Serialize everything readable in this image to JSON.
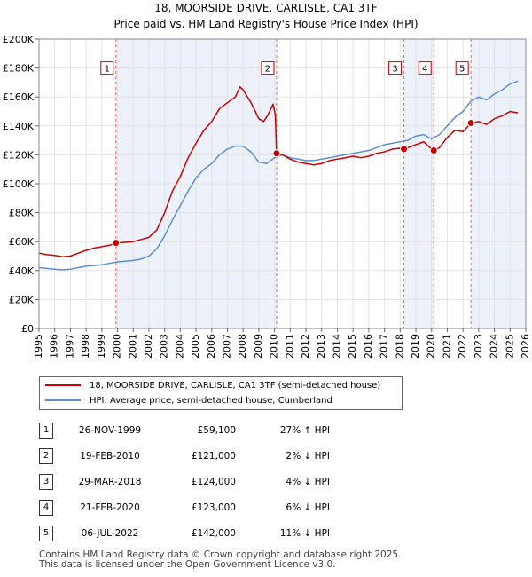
{
  "chart_data": {
    "type": "line",
    "title": "18, MOORSIDE DRIVE, CARLISLE, CA1 3TF",
    "subtitle": "Price paid vs. HM Land Registry's House Price Index (HPI)",
    "xlim": [
      1995,
      2026
    ],
    "ylim": [
      0,
      200000
    ],
    "x_ticks": [
      "1995",
      "1996",
      "1997",
      "1998",
      "1999",
      "2000",
      "2001",
      "2002",
      "2003",
      "2004",
      "2005",
      "2006",
      "2007",
      "2008",
      "2009",
      "2010",
      "2011",
      "2012",
      "2013",
      "2014",
      "2015",
      "2016",
      "2017",
      "2018",
      "2019",
      "2020",
      "2021",
      "2022",
      "2023",
      "2024",
      "2025",
      "2026"
    ],
    "y_ticks": [
      {
        "value": 0,
        "label": "£0"
      },
      {
        "value": 20000,
        "label": "£20K"
      },
      {
        "value": 40000,
        "label": "£40K"
      },
      {
        "value": 60000,
        "label": "£60K"
      },
      {
        "value": 80000,
        "label": "£80K"
      },
      {
        "value": 100000,
        "label": "£100K"
      },
      {
        "value": 120000,
        "label": "£120K"
      },
      {
        "value": 140000,
        "label": "£140K"
      },
      {
        "value": 160000,
        "label": "£160K"
      },
      {
        "value": 180000,
        "label": "£180K"
      },
      {
        "value": 200000,
        "label": "£200K"
      }
    ],
    "grid": true,
    "series": [
      {
        "name": "18, MOORSIDE DRIVE, CARLISLE, CA1 3TF (semi-detached house)",
        "color": "#cc0000",
        "points": [
          [
            1995,
            52000
          ],
          [
            1995.5,
            51000
          ],
          [
            1996,
            50500
          ],
          [
            1996.5,
            49500
          ],
          [
            1997,
            50000
          ],
          [
            1997.5,
            52000
          ],
          [
            1998,
            54000
          ],
          [
            1998.5,
            55500
          ],
          [
            1999,
            56500
          ],
          [
            1999.5,
            57500
          ],
          [
            1999.9,
            59100
          ],
          [
            2000.5,
            59500
          ],
          [
            2001,
            60000
          ],
          [
            2001.5,
            61500
          ],
          [
            2002,
            63000
          ],
          [
            2002.5,
            68000
          ],
          [
            2003,
            80000
          ],
          [
            2003.5,
            95000
          ],
          [
            2004,
            105000
          ],
          [
            2004.5,
            118000
          ],
          [
            2005,
            128000
          ],
          [
            2005.5,
            137000
          ],
          [
            2006,
            143000
          ],
          [
            2006.5,
            152000
          ],
          [
            2007,
            156000
          ],
          [
            2007.5,
            160000
          ],
          [
            2007.8,
            167000
          ],
          [
            2008,
            165000
          ],
          [
            2008.5,
            156000
          ],
          [
            2009,
            145000
          ],
          [
            2009.3,
            143000
          ],
          [
            2009.6,
            148000
          ],
          [
            2009.9,
            155000
          ],
          [
            2010.05,
            148000
          ],
          [
            2010.13,
            121000
          ],
          [
            2010.5,
            120000
          ],
          [
            2011,
            117000
          ],
          [
            2011.5,
            115000
          ],
          [
            2012,
            114000
          ],
          [
            2012.5,
            113000
          ],
          [
            2013,
            114000
          ],
          [
            2013.5,
            116000
          ],
          [
            2014,
            117000
          ],
          [
            2014.5,
            118000
          ],
          [
            2015,
            119000
          ],
          [
            2015.5,
            118000
          ],
          [
            2016,
            119000
          ],
          [
            2016.5,
            121000
          ],
          [
            2017,
            122000
          ],
          [
            2017.5,
            124000
          ],
          [
            2018,
            124500
          ],
          [
            2018.24,
            124000
          ],
          [
            2018.5,
            125000
          ],
          [
            2019,
            127000
          ],
          [
            2019.5,
            129000
          ],
          [
            2020,
            124000
          ],
          [
            2020.14,
            123000
          ],
          [
            2020.5,
            125000
          ],
          [
            2021,
            132000
          ],
          [
            2021.5,
            137000
          ],
          [
            2022,
            136000
          ],
          [
            2022.51,
            142000
          ],
          [
            2023,
            143000
          ],
          [
            2023.5,
            141000
          ],
          [
            2024,
            145000
          ],
          [
            2024.5,
            147000
          ],
          [
            2025,
            150000
          ],
          [
            2025.5,
            149000
          ]
        ]
      },
      {
        "name": "HPI: Average price, semi-detached house, Cumberland",
        "color": "#5b8fd0",
        "points": [
          [
            1995,
            42000
          ],
          [
            1995.5,
            41500
          ],
          [
            1996,
            41000
          ],
          [
            1996.5,
            40500
          ],
          [
            1997,
            41000
          ],
          [
            1997.5,
            42000
          ],
          [
            1998,
            43000
          ],
          [
            1998.5,
            43500
          ],
          [
            1999,
            44000
          ],
          [
            1999.5,
            45000
          ],
          [
            2000,
            46000
          ],
          [
            2000.5,
            46500
          ],
          [
            2001,
            47000
          ],
          [
            2001.5,
            48000
          ],
          [
            2002,
            50000
          ],
          [
            2002.5,
            55000
          ],
          [
            2003,
            64000
          ],
          [
            2003.5,
            75000
          ],
          [
            2004,
            85000
          ],
          [
            2004.5,
            95000
          ],
          [
            2005,
            104000
          ],
          [
            2005.5,
            110000
          ],
          [
            2006,
            114000
          ],
          [
            2006.5,
            120000
          ],
          [
            2007,
            124000
          ],
          [
            2007.5,
            126000
          ],
          [
            2008,
            126000
          ],
          [
            2008.5,
            122000
          ],
          [
            2009,
            115000
          ],
          [
            2009.5,
            114000
          ],
          [
            2010,
            118000
          ],
          [
            2010.5,
            120000
          ],
          [
            2011,
            118000
          ],
          [
            2011.5,
            117000
          ],
          [
            2012,
            116000
          ],
          [
            2012.5,
            116000
          ],
          [
            2013,
            117000
          ],
          [
            2013.5,
            118000
          ],
          [
            2014,
            119000
          ],
          [
            2014.5,
            120000
          ],
          [
            2015,
            121000
          ],
          [
            2015.5,
            122000
          ],
          [
            2016,
            123000
          ],
          [
            2016.5,
            125000
          ],
          [
            2017,
            127000
          ],
          [
            2017.5,
            128000
          ],
          [
            2018,
            129000
          ],
          [
            2018.5,
            130000
          ],
          [
            2019,
            133000
          ],
          [
            2019.5,
            134000
          ],
          [
            2020,
            131000
          ],
          [
            2020.5,
            134000
          ],
          [
            2021,
            140000
          ],
          [
            2021.5,
            146000
          ],
          [
            2022,
            150000
          ],
          [
            2022.5,
            157000
          ],
          [
            2023,
            160000
          ],
          [
            2023.5,
            158000
          ],
          [
            2024,
            162000
          ],
          [
            2024.5,
            165000
          ],
          [
            2025,
            169000
          ],
          [
            2025.5,
            171000
          ]
        ]
      }
    ],
    "sales": [
      {
        "num": "1",
        "x": 1999.9,
        "price": 59100
      },
      {
        "num": "2",
        "x": 2010.13,
        "price": 121000
      },
      {
        "num": "3",
        "x": 2018.24,
        "price": 124000
      },
      {
        "num": "4",
        "x": 2020.14,
        "price": 123000
      },
      {
        "num": "5",
        "x": 2022.51,
        "price": 142000
      }
    ],
    "shaded_spans": [
      [
        1999.9,
        2010.13
      ],
      [
        2018.24,
        2020.14
      ],
      [
        2022.51,
        2026
      ]
    ],
    "marker_label_value": 180000
  },
  "legend": {
    "property_label": "18, MOORSIDE DRIVE, CARLISLE, CA1 3TF (semi-detached house)",
    "hpi_label": "HPI: Average price, semi-detached house, Cumberland",
    "property_color": "#cc0000",
    "hpi_color": "#5b8fd0"
  },
  "sales_table": [
    {
      "num": "1",
      "date": "26-NOV-1999",
      "price": "£59,100",
      "hpi": "27% ↑ HPI"
    },
    {
      "num": "2",
      "date": "19-FEB-2010",
      "price": "£121,000",
      "hpi": "2% ↓ HPI"
    },
    {
      "num": "3",
      "date": "29-MAR-2018",
      "price": "£124,000",
      "hpi": "4% ↓ HPI"
    },
    {
      "num": "4",
      "date": "21-FEB-2020",
      "price": "£123,000",
      "hpi": "6% ↓ HPI"
    },
    {
      "num": "5",
      "date": "06-JUL-2022",
      "price": "£142,000",
      "hpi": "11% ↓ HPI"
    }
  ],
  "footer": {
    "line1": "Contains HM Land Registry data © Crown copyright and database right 2025.",
    "line2": "This data is licensed under the Open Government Licence v3.0."
  }
}
